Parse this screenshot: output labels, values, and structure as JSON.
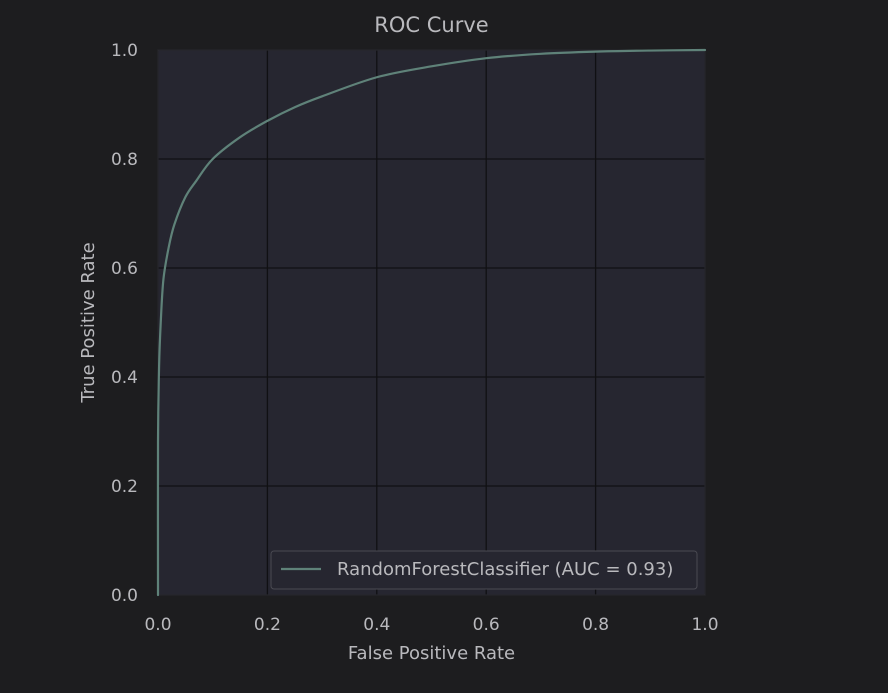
{
  "colors": {
    "page_background": "#1d1d1f",
    "plot_background": "#262630",
    "grid": "#101013",
    "spine": "#2c2c32",
    "text": "#b9b9bd",
    "curve": "#5f8279",
    "legend_background": "#262630",
    "legend_border": "#4a4a52"
  },
  "chart_data": {
    "type": "line",
    "title": "ROC Curve",
    "xlabel": "False Positive Rate",
    "ylabel": "True Positive Rate",
    "xlim": [
      0,
      1
    ],
    "ylim": [
      0,
      1
    ],
    "xticks": [
      0.0,
      0.2,
      0.4,
      0.6,
      0.8,
      1.0
    ],
    "yticks": [
      0.0,
      0.2,
      0.4,
      0.6,
      0.8,
      1.0
    ],
    "xtick_labels": [
      "0.0",
      "0.2",
      "0.4",
      "0.6",
      "0.8",
      "1.0"
    ],
    "ytick_labels": [
      "0.0",
      "0.2",
      "0.4",
      "0.6",
      "0.8",
      "1.0"
    ],
    "grid": true,
    "legend": {
      "position": "lower-right",
      "entries": [
        "RandomForestClassifier (AUC = 0.93)"
      ]
    },
    "series": [
      {
        "name": "RandomForestClassifier (AUC = 0.93)",
        "x": [
          0.0,
          0.0,
          0.002,
          0.005,
          0.01,
          0.02,
          0.03,
          0.05,
          0.07,
          0.1,
          0.15,
          0.2,
          0.25,
          0.3,
          0.4,
          0.5,
          0.6,
          0.7,
          0.8,
          0.9,
          1.0
        ],
        "y": [
          0.0,
          0.28,
          0.42,
          0.5,
          0.58,
          0.64,
          0.68,
          0.73,
          0.76,
          0.8,
          0.84,
          0.87,
          0.895,
          0.915,
          0.95,
          0.97,
          0.985,
          0.993,
          0.997,
          0.999,
          1.0
        ]
      }
    ]
  }
}
